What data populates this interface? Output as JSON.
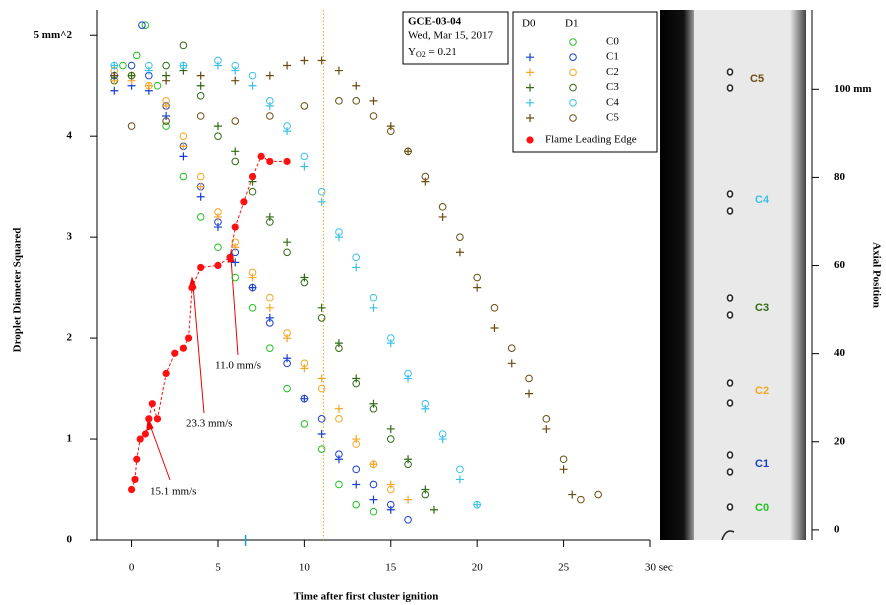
{
  "chart_data": {
    "type": "scatter",
    "xlabel": "Time after first cluster ignition",
    "ylabel": "Droplet Diameter Squared",
    "y2label": "Axial Position",
    "xlim": [
      -2,
      30
    ],
    "xticks": [
      0,
      5,
      10,
      15,
      20,
      25,
      {
        "value": 30,
        "label": "30 sec"
      }
    ],
    "ylim": [
      0,
      5.25
    ],
    "yticks": [
      0,
      1,
      2,
      3,
      4,
      {
        "value": 5,
        "label": "5 mm^2"
      }
    ],
    "y2lim": [
      -2.3,
      118
    ],
    "y2ticks": [
      0,
      20,
      40,
      60,
      80,
      {
        "value": 100,
        "label": "100 mm"
      }
    ],
    "info": {
      "id": "GCE-03-04",
      "date": "Wed, Mar 15, 2017",
      "y_symbol": "Y",
      "y_sub": "O2",
      "y_value": " = 0.21"
    },
    "groups": [
      "D0",
      "D1"
    ],
    "vlines": [
      {
        "x": 11.1,
        "color": "#f0a020"
      },
      {
        "x": 6.6,
        "color": "#1a9fe0"
      }
    ],
    "series": [
      {
        "name": "C0",
        "group": "D1",
        "marker": "circle",
        "color": "#22c022",
        "x": [
          -0.5,
          0.3,
          0.8,
          1.5,
          2,
          3,
          4,
          5,
          6,
          7,
          8,
          9,
          10,
          11,
          12,
          13,
          14
        ],
        "values": [
          4.7,
          4.8,
          5.1,
          4.5,
          4.1,
          3.6,
          3.2,
          2.9,
          2.6,
          2.3,
          1.9,
          1.5,
          1.15,
          0.9,
          0.55,
          0.35,
          0.28
        ]
      },
      {
        "name": "C1",
        "group": "D1",
        "marker": "circle",
        "color": "#1a3fd0",
        "x": [
          -1,
          0,
          0.6,
          1,
          2,
          3,
          4,
          5,
          6,
          7,
          8,
          9,
          10,
          11,
          12,
          13,
          14,
          15,
          16
        ],
        "values": [
          4.6,
          4.7,
          5.1,
          4.6,
          4.3,
          3.9,
          3.5,
          3.15,
          2.85,
          2.5,
          2.15,
          1.75,
          1.4,
          1.2,
          0.85,
          0.7,
          0.55,
          0.35,
          0.2
        ]
      },
      {
        "name": "C2",
        "group": "D1",
        "marker": "circle",
        "color": "#f5a623",
        "x": [
          -1,
          0,
          1,
          2,
          3,
          4,
          5,
          6,
          7,
          8,
          9,
          10,
          11,
          12,
          13,
          14,
          15
        ],
        "values": [
          4.65,
          4.6,
          4.5,
          4.35,
          4.0,
          3.6,
          3.25,
          2.95,
          2.65,
          2.4,
          2.05,
          1.75,
          1.5,
          1.2,
          0.95,
          0.75,
          0.5
        ]
      },
      {
        "name": "C3",
        "group": "D1",
        "marker": "circle",
        "color": "#2e6b12",
        "x": [
          -1,
          0,
          2,
          3,
          4,
          5,
          6,
          7,
          8,
          9,
          10,
          11,
          12,
          13,
          14,
          15,
          16,
          17
        ],
        "values": [
          4.55,
          4.6,
          4.7,
          4.9,
          4.4,
          4.0,
          3.75,
          3.45,
          3.15,
          2.85,
          2.55,
          2.2,
          1.9,
          1.55,
          1.3,
          1.0,
          0.75,
          0.45
        ]
      },
      {
        "name": "C4",
        "group": "D1",
        "marker": "circle",
        "color": "#3cc0e8",
        "x": [
          -1,
          1,
          3,
          5,
          6,
          7,
          8,
          9,
          10,
          11,
          12,
          13,
          14,
          15,
          16,
          17,
          18,
          19,
          20
        ],
        "values": [
          4.7,
          4.7,
          4.7,
          4.75,
          4.7,
          4.6,
          4.35,
          4.1,
          3.8,
          3.45,
          3.05,
          2.8,
          2.4,
          2.0,
          1.65,
          1.35,
          1.05,
          0.7,
          0.35
        ]
      },
      {
        "name": "C5",
        "group": "D1",
        "marker": "circle",
        "color": "#6b4c10",
        "x": [
          0,
          2,
          4,
          6,
          8,
          10,
          12,
          13,
          14,
          15,
          16,
          17,
          18,
          19,
          20,
          21,
          22,
          23,
          24,
          25,
          26,
          27
        ],
        "values": [
          4.1,
          4.15,
          4.2,
          4.15,
          4.2,
          4.3,
          4.35,
          4.35,
          4.2,
          4.05,
          3.85,
          3.6,
          3.3,
          3.0,
          2.6,
          2.3,
          1.9,
          1.6,
          1.2,
          0.8,
          0.4,
          0.45
        ]
      },
      {
        "name": "C1",
        "group": "D0",
        "marker": "plus",
        "color": "#1a3fd0",
        "x": [
          -1,
          0,
          1,
          2,
          3,
          4,
          5,
          6,
          7,
          8,
          9,
          10,
          11,
          12,
          13,
          14,
          15
        ],
        "values": [
          4.45,
          4.5,
          4.45,
          4.2,
          3.8,
          3.4,
          3.1,
          2.75,
          2.5,
          2.2,
          1.8,
          1.4,
          1.05,
          0.8,
          0.55,
          0.4,
          0.3
        ]
      },
      {
        "name": "C2",
        "group": "D0",
        "marker": "plus",
        "color": "#f5a623",
        "x": [
          -1,
          0,
          1,
          2,
          3,
          4,
          5,
          6,
          7,
          8,
          9,
          10,
          11,
          12,
          13,
          14,
          15,
          16
        ],
        "values": [
          4.55,
          4.55,
          4.5,
          4.3,
          3.9,
          3.5,
          3.2,
          2.9,
          2.6,
          2.3,
          2.0,
          1.7,
          1.6,
          1.3,
          1.0,
          0.75,
          0.55,
          0.4
        ]
      },
      {
        "name": "C3",
        "group": "D0",
        "marker": "plus",
        "color": "#2e6b12",
        "x": [
          -1,
          0,
          2,
          3,
          4,
          5,
          6,
          7,
          8,
          9,
          10,
          11,
          12,
          13,
          14,
          15,
          16,
          17,
          17.5
        ],
        "values": [
          4.6,
          4.6,
          4.6,
          4.65,
          4.5,
          4.1,
          3.85,
          3.55,
          3.2,
          2.95,
          2.6,
          2.3,
          1.95,
          1.6,
          1.35,
          1.1,
          0.8,
          0.5,
          0.3
        ]
      },
      {
        "name": "C4",
        "group": "D0",
        "marker": "plus",
        "color": "#3cc0e8",
        "x": [
          -1,
          1,
          3,
          5,
          6,
          7,
          8,
          9,
          10,
          11,
          12,
          13,
          14,
          15,
          16,
          17,
          18,
          19,
          20
        ],
        "values": [
          4.7,
          4.65,
          4.7,
          4.7,
          4.65,
          4.5,
          4.3,
          4.05,
          3.7,
          3.35,
          3.0,
          2.7,
          2.3,
          1.95,
          1.6,
          1.3,
          1.0,
          0.6,
          0.35
        ]
      },
      {
        "name": "C5",
        "group": "D0",
        "marker": "plus",
        "color": "#6b4c10",
        "x": [
          -1,
          2,
          4,
          6,
          8,
          9,
          10,
          11,
          12,
          13,
          14,
          15,
          16,
          17,
          18,
          19,
          20,
          21,
          22,
          23,
          24,
          25,
          25.5
        ],
        "values": [
          4.6,
          4.55,
          4.6,
          4.55,
          4.6,
          4.7,
          4.75,
          4.75,
          4.65,
          4.5,
          4.35,
          4.1,
          3.85,
          3.55,
          3.2,
          2.85,
          2.5,
          2.1,
          1.75,
          1.45,
          1.1,
          0.7,
          0.45
        ]
      }
    ],
    "flame": {
      "name": "Flame Leading Edge",
      "color": "#ff1010",
      "x": [
        0,
        0.2,
        0.3,
        0.5,
        0.8,
        1,
        1.2,
        1.5,
        2,
        2.5,
        3,
        3.3,
        3.5,
        4,
        5,
        5.7,
        6,
        6.5,
        7,
        7.5,
        8,
        9
      ],
      "values": [
        0.5,
        0.6,
        0.8,
        1.0,
        1.05,
        1.2,
        1.35,
        1.2,
        1.65,
        1.85,
        1.9,
        2.0,
        2.5,
        2.7,
        2.72,
        2.8,
        3.1,
        3.35,
        3.6,
        3.8,
        3.75,
        3.75
      ]
    },
    "annotations": [
      "11.0 mm/s",
      "23.3 mm/s",
      "15.1 mm/s"
    ],
    "cluster_labels": [
      "C0",
      "C1",
      "C2",
      "C3",
      "C4",
      "C5"
    ]
  }
}
